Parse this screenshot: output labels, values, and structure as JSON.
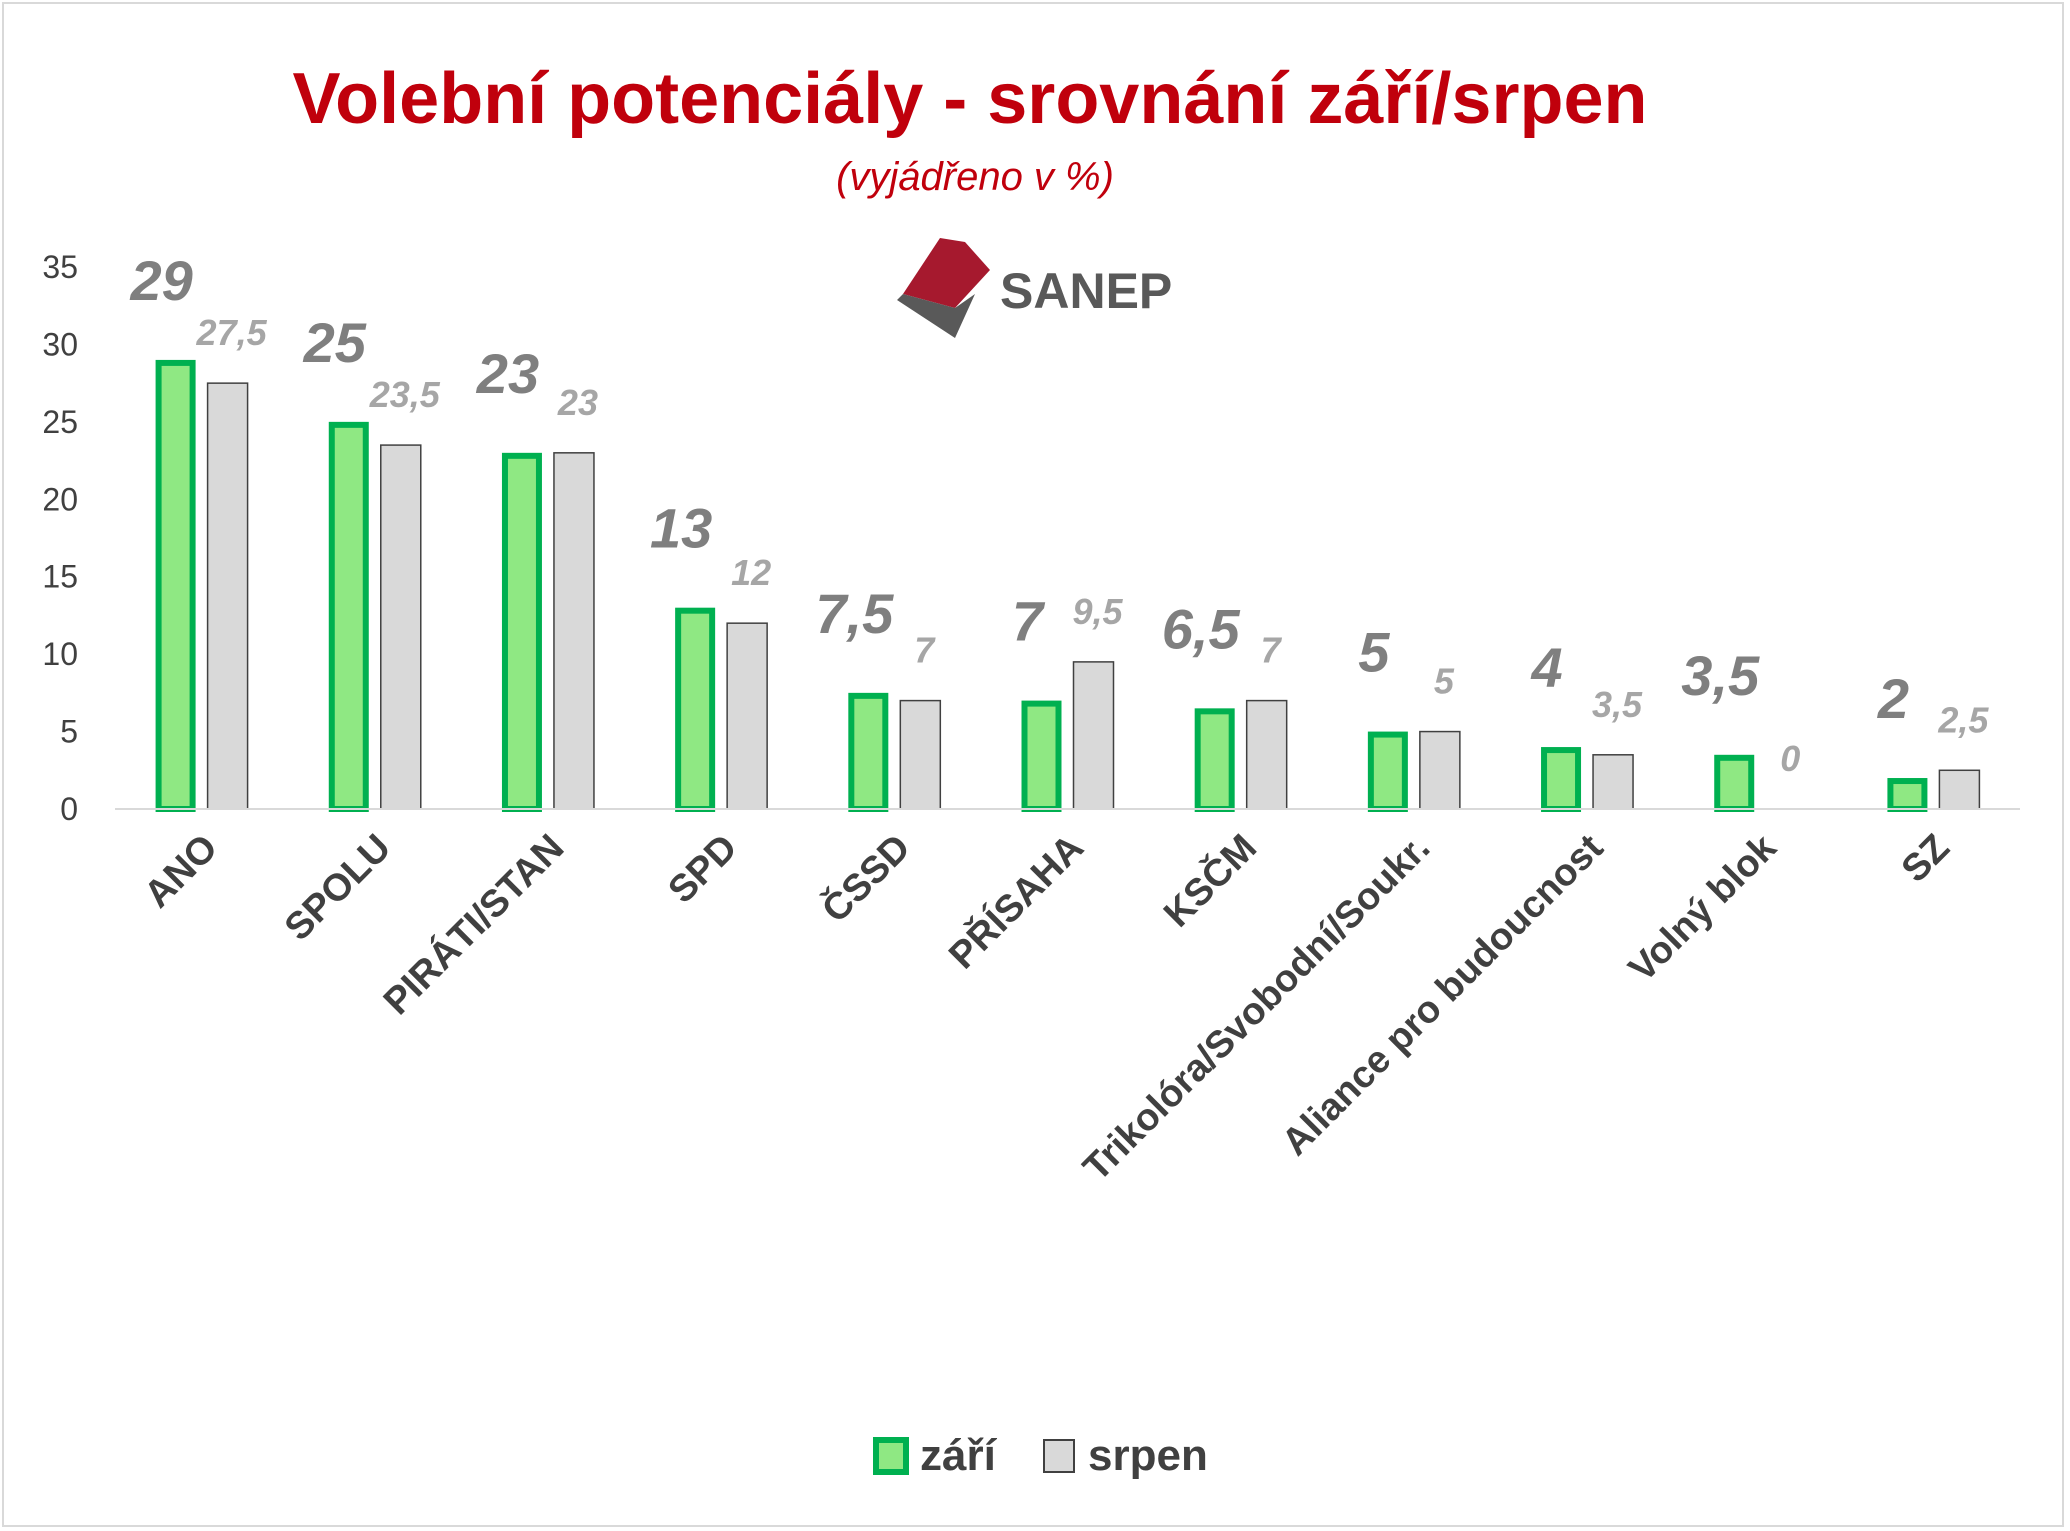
{
  "chart_data": {
    "type": "bar",
    "title": "Volební potenciály - srovnání září/srpen",
    "subtitle": "(vyjádřeno v %)",
    "categories": [
      "ANO",
      "SPOLU",
      "PIRÁTI/STAN",
      "SPD",
      "ČSSD",
      "PŘÍSAHA",
      "KSČM",
      "Trikolóra/Svobodní/Soukr.",
      "Aliance pro budoucnost",
      "Volný blok",
      "SZ"
    ],
    "series": [
      {
        "name": "září",
        "values": [
          29,
          25,
          23,
          13,
          7.5,
          7,
          6.5,
          5,
          4,
          3.5,
          2
        ],
        "labels": [
          "29",
          "25",
          "23",
          "13",
          "7,5",
          "7",
          "6,5",
          "5",
          "4",
          "3,5",
          "2"
        ],
        "fill": "#8fe883",
        "stroke": "#00b050"
      },
      {
        "name": "srpen",
        "values": [
          27.5,
          23.5,
          23,
          12,
          7,
          9.5,
          7,
          5,
          3.5,
          0,
          2.5
        ],
        "labels": [
          "27,5",
          "23,5",
          "23",
          "12",
          "7",
          "9,5",
          "7",
          "5",
          "3,5",
          "0",
          "2,5"
        ],
        "fill": "#d9d9d9",
        "stroke": "#404040"
      }
    ],
    "ylim": [
      0,
      35
    ],
    "yticks": [
      0,
      5,
      10,
      15,
      20,
      25,
      30,
      35
    ],
    "xlabel": "",
    "ylabel": "",
    "grid": false,
    "legend": "bottom-center"
  },
  "logo": {
    "text": "SANEP",
    "colors": {
      "red": "#a6192e",
      "gray": "#595959"
    }
  },
  "colors": {
    "title": "#c0000c",
    "axis": "#d9d9d9"
  }
}
